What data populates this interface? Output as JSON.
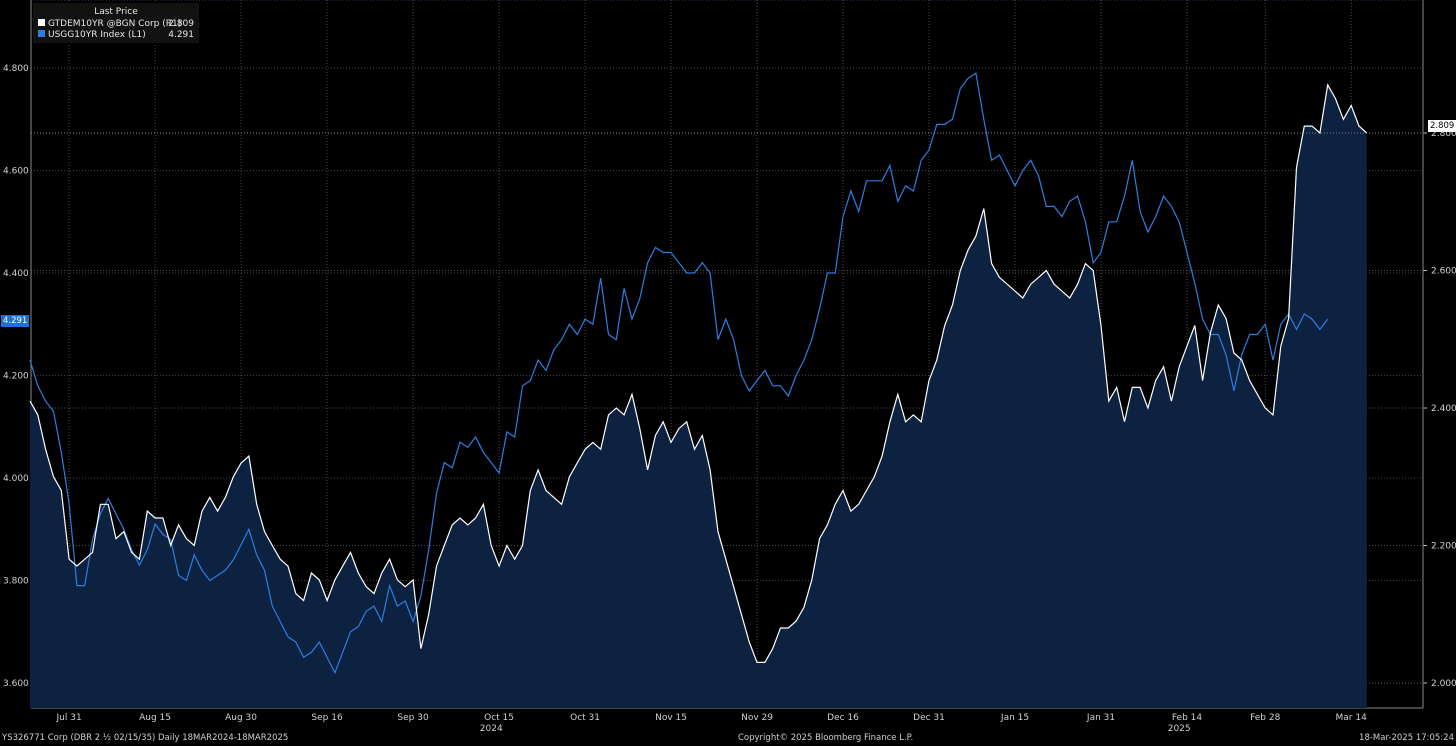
{
  "legend": {
    "title": "Last Price",
    "items": [
      {
        "name": "GTDEM10YR @BGN Corp  (R1)",
        "value": "2.809",
        "color": "#ffffff"
      },
      {
        "name": "USGG10YR Index  (L1)",
        "value": "4.291",
        "color": "#2f7de1"
      }
    ]
  },
  "tags": {
    "left": "4.291",
    "right": "2.809"
  },
  "footer": {
    "left": "YS326771 Corp (DBR 2 ½ 02/15/35)  Daily 18MAR2024-18MAR2025",
    "center": "Copyright© 2025 Bloomberg Finance L.P.",
    "right": "18-Mar-2025 17:05:24"
  },
  "colors": {
    "us": "#2f7de1",
    "de": "#ffffff",
    "fill": "#0c2240",
    "grid": "#5a5a5a"
  },
  "chart_data": {
    "type": "line",
    "x_axis": {
      "range": [
        0,
        170
      ],
      "ticks": [
        {
          "x": 5,
          "label": "Jul 31"
        },
        {
          "x": 16,
          "label": "Aug 15"
        },
        {
          "x": 27,
          "label": "Aug 30"
        },
        {
          "x": 38,
          "label": "Sep 16"
        },
        {
          "x": 49,
          "label": "Sep 30"
        },
        {
          "x": 60,
          "label": "Oct 15"
        },
        {
          "x": 71,
          "label": "Oct 31"
        },
        {
          "x": 82,
          "label": "Nov 15"
        },
        {
          "x": 93,
          "label": "Nov 29"
        },
        {
          "x": 104,
          "label": "Dec 16"
        },
        {
          "x": 115,
          "label": "Dec 31"
        },
        {
          "x": 126,
          "label": "Jan 15"
        },
        {
          "x": 137,
          "label": "Jan 31"
        },
        {
          "x": 148,
          "label": "Feb 14"
        },
        {
          "x": 158,
          "label": "Feb 28"
        },
        {
          "x": 169,
          "label": "Mar 14"
        }
      ],
      "year_labels": [
        {
          "x": 59,
          "label": "2024"
        },
        {
          "x": 147,
          "label": "2025"
        }
      ]
    },
    "left_axis": {
      "range": [
        3.56,
        4.91
      ],
      "ticks": [
        "3.600",
        "3.800",
        "4.000",
        "4.200",
        "4.400",
        "4.600",
        "4.800"
      ]
    },
    "right_axis": {
      "range": [
        1.98,
        2.97
      ],
      "ticks": [
        "2.000",
        "2.200",
        "2.400",
        "2.600",
        "2.800"
      ]
    },
    "series": [
      {
        "name": "USGG10YR Index  (L1)",
        "axis": "left",
        "values": [
          4.23,
          4.18,
          4.15,
          4.13,
          4.05,
          3.95,
          3.79,
          3.79,
          3.88,
          3.93,
          3.96,
          3.93,
          3.9,
          3.86,
          3.83,
          3.86,
          3.91,
          3.89,
          3.88,
          3.81,
          3.8,
          3.85,
          3.82,
          3.8,
          3.81,
          3.82,
          3.84,
          3.87,
          3.9,
          3.85,
          3.82,
          3.75,
          3.72,
          3.69,
          3.68,
          3.65,
          3.66,
          3.68,
          3.65,
          3.62,
          3.66,
          3.7,
          3.71,
          3.74,
          3.75,
          3.72,
          3.79,
          3.75,
          3.76,
          3.72,
          3.77,
          3.86,
          3.97,
          4.03,
          4.02,
          4.07,
          4.06,
          4.08,
          4.05,
          4.03,
          4.01,
          4.09,
          4.08,
          4.18,
          4.19,
          4.23,
          4.21,
          4.25,
          4.27,
          4.3,
          4.28,
          4.31,
          4.3,
          4.39,
          4.28,
          4.27,
          4.37,
          4.31,
          4.35,
          4.42,
          4.45,
          4.44,
          4.44,
          4.42,
          4.4,
          4.4,
          4.42,
          4.4,
          4.27,
          4.31,
          4.27,
          4.2,
          4.17,
          4.19,
          4.21,
          4.18,
          4.18,
          4.16,
          4.2,
          4.23,
          4.27,
          4.33,
          4.4,
          4.4,
          4.51,
          4.56,
          4.52,
          4.58,
          4.58,
          4.58,
          4.61,
          4.54,
          4.57,
          4.56,
          4.62,
          4.64,
          4.69,
          4.69,
          4.7,
          4.76,
          4.78,
          4.79,
          4.7,
          4.62,
          4.63,
          4.6,
          4.57,
          4.6,
          4.62,
          4.59,
          4.53,
          4.53,
          4.51,
          4.54,
          4.55,
          4.5,
          4.42,
          4.44,
          4.5,
          4.5,
          4.55,
          4.62,
          4.52,
          4.48,
          4.51,
          4.55,
          4.53,
          4.5,
          4.44,
          4.38,
          4.31,
          4.28,
          4.28,
          4.24,
          4.17,
          4.24,
          4.28,
          4.28,
          4.3,
          4.23,
          4.3,
          4.32,
          4.29,
          4.32,
          4.31,
          4.29,
          4.31
        ]
      },
      {
        "name": "GTDEM10YR @BGN Corp  (R1)",
        "axis": "right",
        "values": [
          2.41,
          2.39,
          2.34,
          2.3,
          2.28,
          2.18,
          2.17,
          2.18,
          2.19,
          2.26,
          2.26,
          2.21,
          2.22,
          2.19,
          2.18,
          2.25,
          2.24,
          2.24,
          2.2,
          2.23,
          2.21,
          2.2,
          2.25,
          2.27,
          2.25,
          2.27,
          2.3,
          2.32,
          2.33,
          2.26,
          2.22,
          2.2,
          2.18,
          2.17,
          2.13,
          2.12,
          2.16,
          2.15,
          2.12,
          2.15,
          2.17,
          2.19,
          2.16,
          2.14,
          2.13,
          2.16,
          2.18,
          2.15,
          2.14,
          2.15,
          2.05,
          2.1,
          2.17,
          2.2,
          2.23,
          2.24,
          2.23,
          2.24,
          2.26,
          2.2,
          2.17,
          2.2,
          2.18,
          2.2,
          2.28,
          2.31,
          2.28,
          2.27,
          2.26,
          2.3,
          2.32,
          2.34,
          2.35,
          2.34,
          2.39,
          2.4,
          2.39,
          2.42,
          2.37,
          2.31,
          2.36,
          2.38,
          2.35,
          2.37,
          2.38,
          2.34,
          2.36,
          2.31,
          2.22,
          2.18,
          2.14,
          2.1,
          2.06,
          2.03,
          2.03,
          2.05,
          2.08,
          2.08,
          2.09,
          2.11,
          2.15,
          2.21,
          2.23,
          2.26,
          2.28,
          2.25,
          2.26,
          2.28,
          2.3,
          2.33,
          2.38,
          2.42,
          2.38,
          2.39,
          2.38,
          2.44,
          2.47,
          2.52,
          2.55,
          2.6,
          2.63,
          2.65,
          2.69,
          2.61,
          2.59,
          2.58,
          2.57,
          2.56,
          2.58,
          2.59,
          2.6,
          2.58,
          2.57,
          2.56,
          2.58,
          2.61,
          2.6,
          2.52,
          2.41,
          2.43,
          2.38,
          2.43,
          2.43,
          2.4,
          2.44,
          2.46,
          2.41,
          2.46,
          2.49,
          2.52,
          2.44,
          2.51,
          2.55,
          2.53,
          2.48,
          2.47,
          2.44,
          2.42,
          2.4,
          2.39,
          2.49,
          2.53,
          2.75,
          2.81,
          2.81,
          2.8,
          2.87,
          2.85,
          2.82,
          2.84,
          2.81,
          2.8
        ]
      }
    ],
    "grid": true
  }
}
